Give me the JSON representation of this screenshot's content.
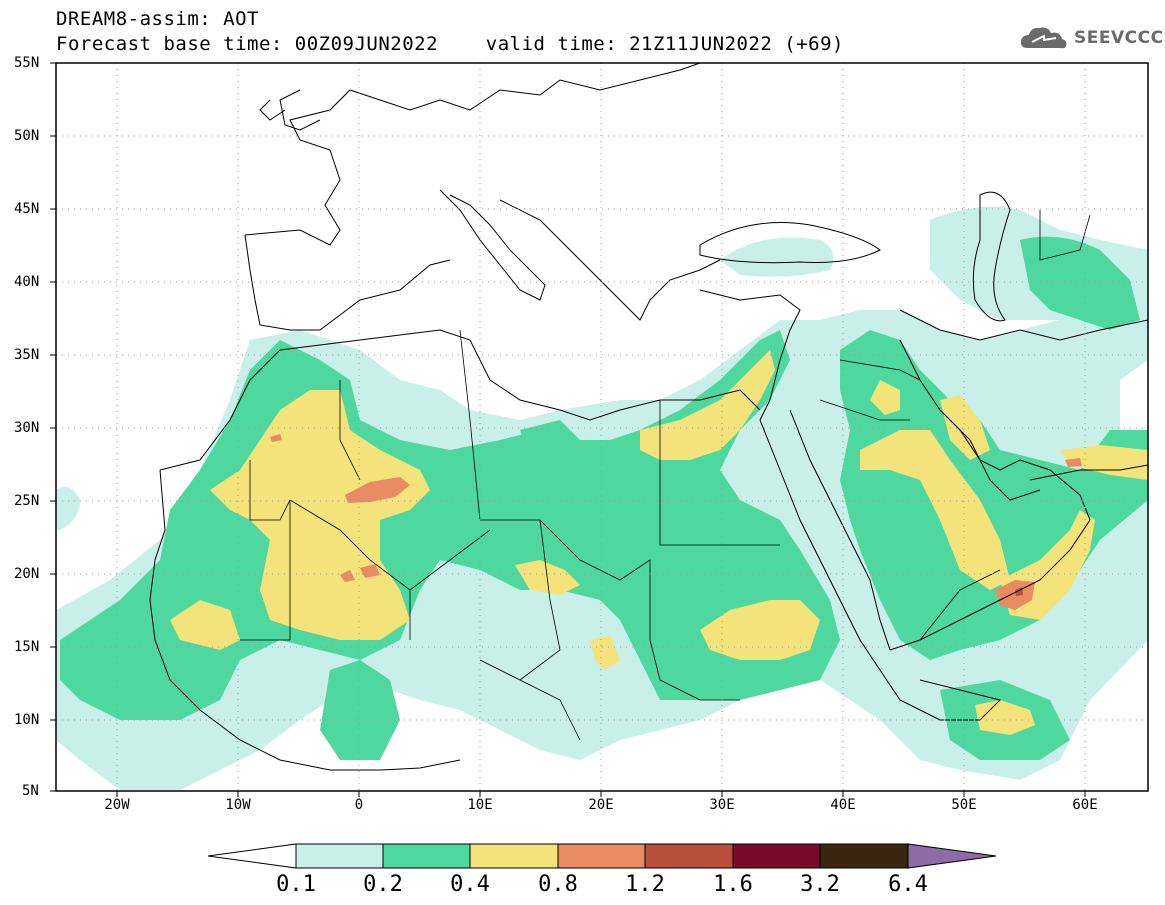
{
  "header": {
    "title_line1": "DREAM8-assim: AOT",
    "title_line2": "Forecast base time: 00Z09JUN2022    valid time: 21Z11JUN2022 (+69)",
    "logo_text": "SEEVCCC"
  },
  "map": {
    "lat_labels": [
      "55N",
      "50N",
      "45N",
      "40N",
      "35N",
      "30N",
      "25N",
      "20N",
      "15N",
      "10N",
      "5N"
    ],
    "lon_labels": [
      "20W",
      "10W",
      "0",
      "10E",
      "20E",
      "30E",
      "40E",
      "50E",
      "60E"
    ]
  },
  "colorbar": {
    "levels": [
      "0.1",
      "0.2",
      "0.4",
      "0.8",
      "1.2",
      "1.6",
      "3.2",
      "6.4"
    ],
    "colors": [
      "#ffffff",
      "#c8f0e8",
      "#4ed8a0",
      "#f4e27a",
      "#e88a62",
      "#b84e3c",
      "#7a0a2c",
      "#3b2410",
      "#8e6aa8"
    ]
  },
  "colors": {
    "aot_0_1": "#c8f0e8",
    "aot_0_2": "#4ed8a0",
    "aot_0_4": "#f4e27a",
    "aot_0_8": "#e88a62",
    "aot_1_2": "#b84e3c"
  }
}
